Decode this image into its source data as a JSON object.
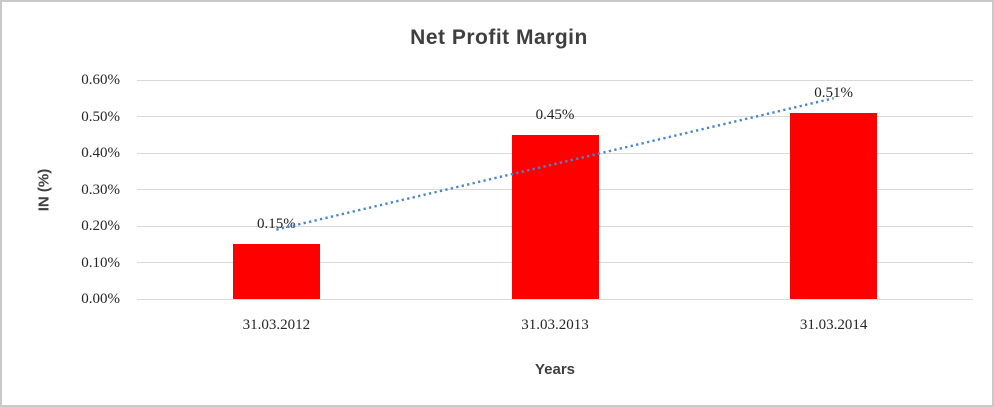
{
  "chart_data": {
    "type": "bar",
    "title": "Net Profit Margin",
    "xlabel": "Years",
    "ylabel": "IN (%)",
    "categories": [
      "31.03.2012",
      "31.03.2013",
      "31.03.2014"
    ],
    "series": [
      {
        "name": "Net Profit Margin",
        "values": [
          0.15,
          0.45,
          0.51
        ]
      }
    ],
    "data_labels": [
      "0.15%",
      "0.45%",
      "0.51%"
    ],
    "ylim": [
      0,
      0.6
    ],
    "ytick_step": 0.1,
    "ytick_labels": [
      "0.00%",
      "0.10%",
      "0.20%",
      "0.30%",
      "0.40%",
      "0.50%",
      "0.60%"
    ],
    "grid": true,
    "legend": "none",
    "colors": {
      "bar": "#ff0000",
      "gridline": "#d9d9d9",
      "title_text": "#3f3f3f",
      "tick_text": "#262626",
      "trendline": "#4a86c8"
    },
    "trendline": {
      "type": "linear",
      "style": "dotted",
      "color": "#4a86c8",
      "start_value": 0.19,
      "end_value": 0.55
    }
  }
}
